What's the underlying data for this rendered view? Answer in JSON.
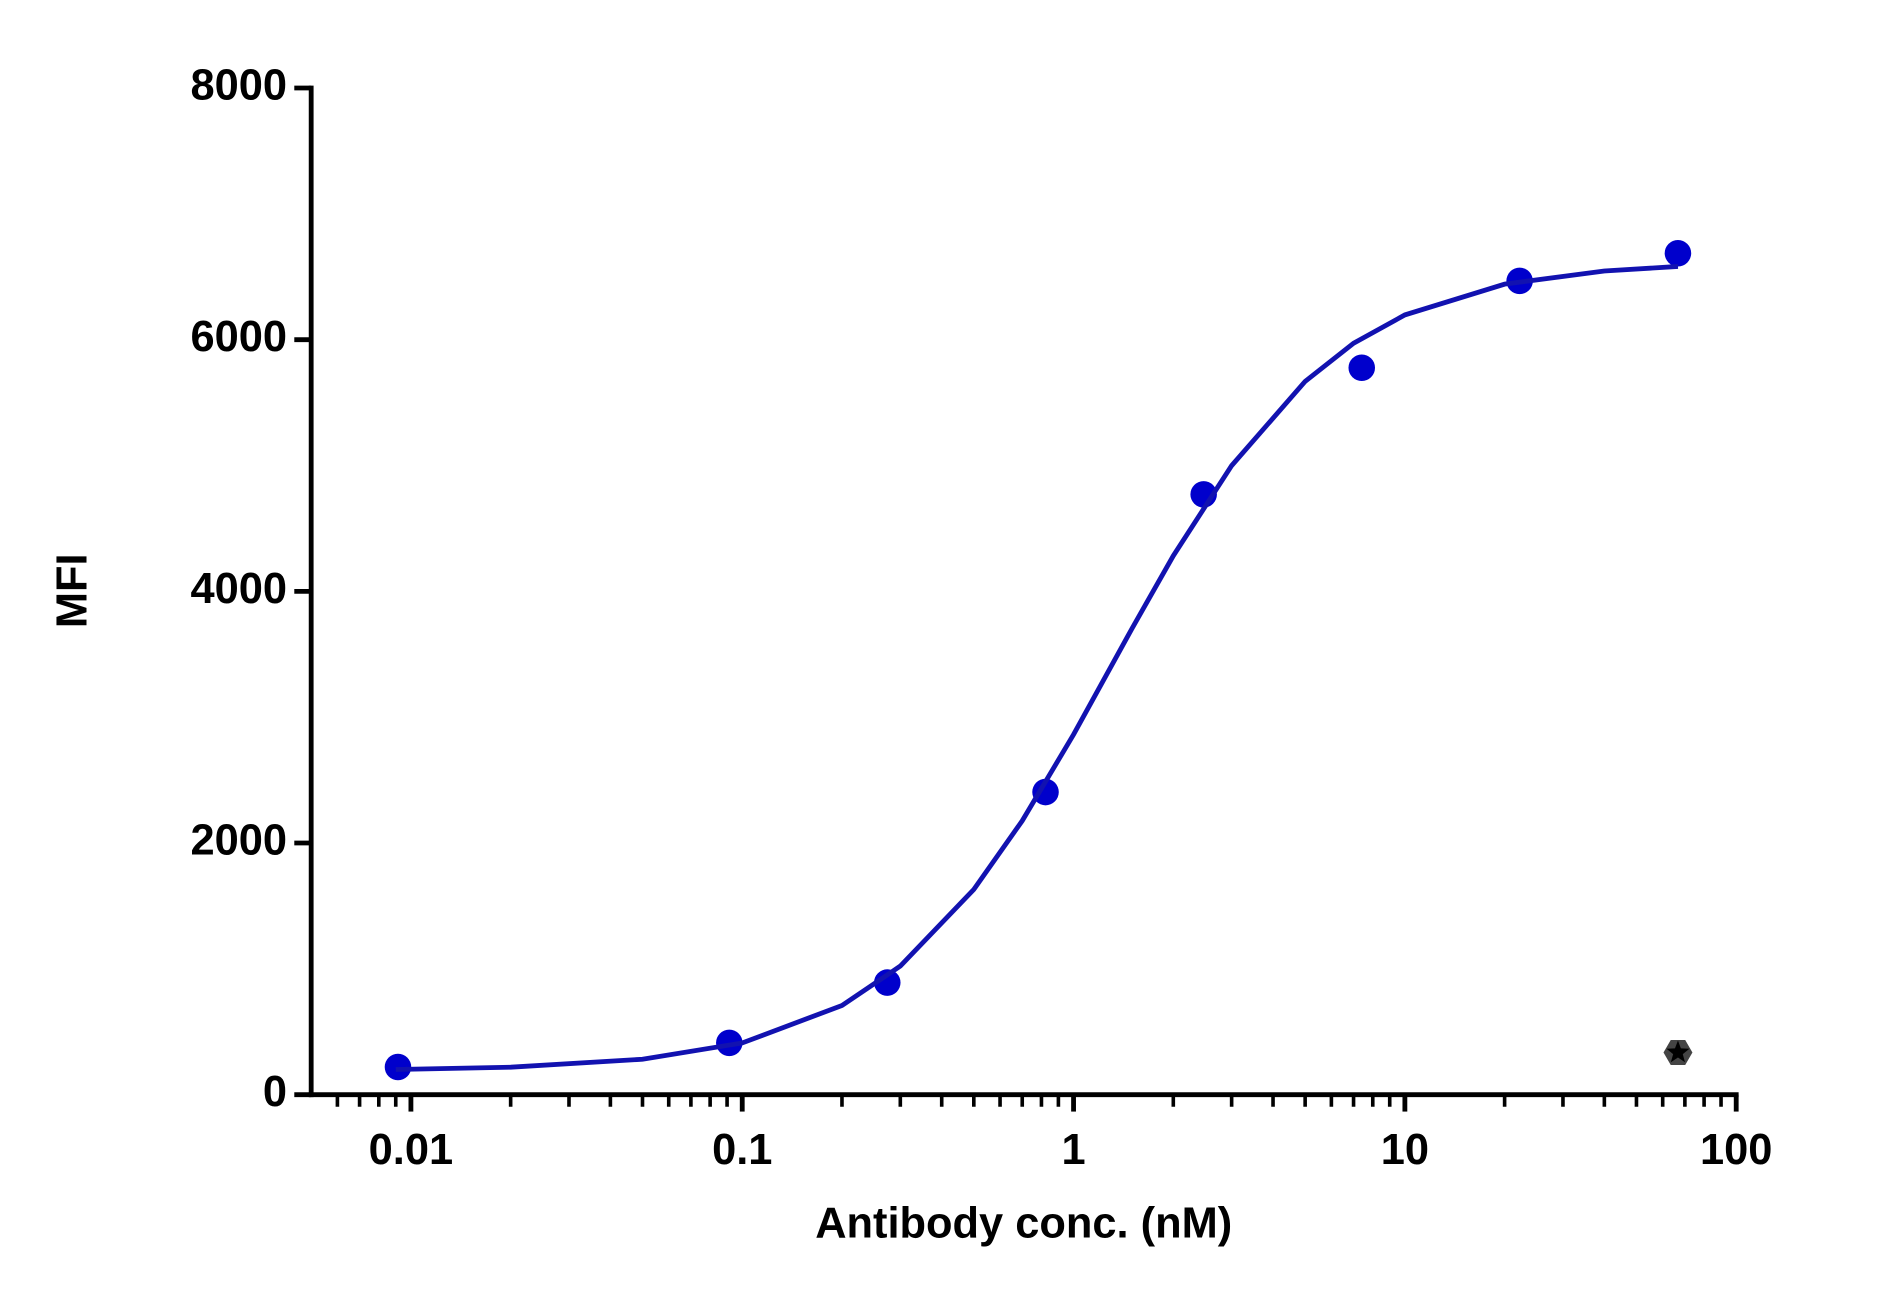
{
  "chart_data": {
    "type": "scatter",
    "x_label": "Antibody conc. (nM)",
    "y_label": "MFI",
    "xscale": "log",
    "xlim": [
      0.005,
      100
    ],
    "xticks": [
      0.01,
      0.1,
      1,
      10,
      100
    ],
    "xminor_ticks": [
      0.006,
      0.007,
      0.008,
      0.009,
      0.02,
      0.03,
      0.04,
      0.05,
      0.06,
      0.07,
      0.08,
      0.09,
      0.2,
      0.3,
      0.4,
      0.5,
      0.6,
      0.7,
      0.8,
      0.9,
      2,
      3,
      4,
      5,
      6,
      7,
      8,
      9,
      20,
      30,
      40,
      50,
      60,
      70,
      80,
      90
    ],
    "ylim": [
      0,
      8000
    ],
    "yticks": [
      0,
      2000,
      4000,
      6000,
      8000
    ],
    "series": [
      {
        "marker": "circle",
        "color": "#0000cc",
        "x": [
          0.00914,
          0.0914,
          0.274,
          0.823,
          2.47,
          7.41,
          22.2,
          66.7
        ],
        "values": [
          220,
          412,
          891,
          2405,
          4771,
          5777,
          6467,
          6687
        ]
      },
      {
        "marker": "line",
        "color": "#1212b0",
        "x": [
          0.009,
          0.02,
          0.05,
          0.1,
          0.2,
          0.3,
          0.5,
          0.7,
          1,
          1.5,
          2,
          3,
          5,
          7,
          10,
          20,
          40,
          66.7
        ],
        "values": [
          200,
          218,
          282,
          411,
          709,
          1022,
          1631,
          2177,
          2863,
          3704,
          4283,
          4999,
          5669,
          5972,
          6197,
          6441,
          6546,
          6582
        ]
      },
      {
        "marker": "star",
        "color": "#444444",
        "x": [
          66.7
        ],
        "values": [
          335
        ]
      }
    ]
  }
}
